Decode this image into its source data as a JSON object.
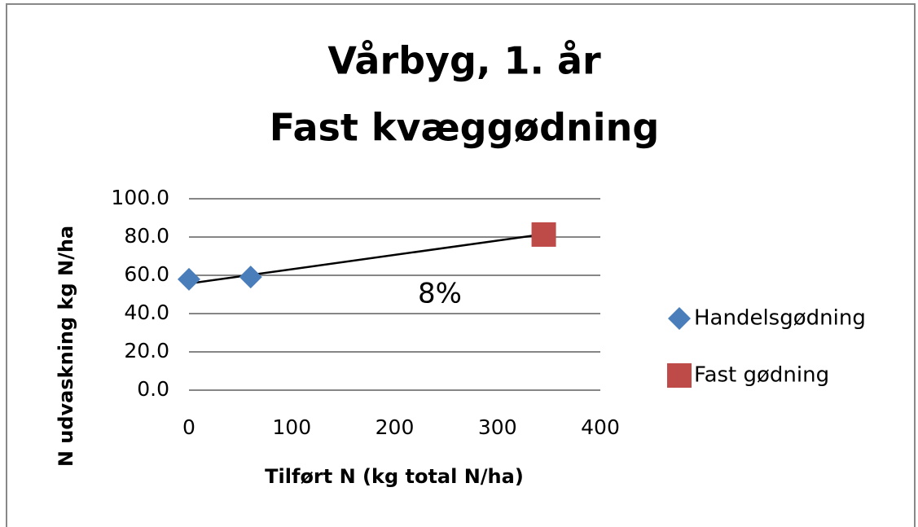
{
  "chart_data": {
    "type": "scatter",
    "title": [
      "Vårbyg, 1. år",
      "Fast kvæggødning"
    ],
    "x_label": "Tilført  N (kg total N/ha)",
    "y_label": "N udvaskning kg N/ha",
    "annotation": "8%",
    "series": [
      {
        "name": "Handelsgødning",
        "color": "#4a7ebb",
        "marker": "diamond",
        "x": [
          0,
          60
        ],
        "values": [
          57.9,
          59.1
        ]
      },
      {
        "name": "Fast gødning",
        "color": "#be4b48",
        "marker": "square",
        "x": [
          345
        ],
        "values": [
          81.3
        ]
      }
    ],
    "trendline": {
      "color": "#000000",
      "x": [
        0,
        345
      ],
      "values": [
        55.7,
        81.5
      ]
    },
    "xlim": [
      0,
      400
    ],
    "xticks": [
      0,
      100,
      200,
      300,
      400
    ],
    "ylim": [
      0,
      100
    ],
    "yticks": [
      {
        "value": 0,
        "label": "0.0"
      },
      {
        "value": 20,
        "label": "20.0"
      },
      {
        "value": 40,
        "label": "40.0"
      },
      {
        "value": 60,
        "label": "60.0"
      },
      {
        "value": 80,
        "label": "80.0"
      },
      {
        "value": 100,
        "label": "100.0"
      }
    ],
    "grid": true,
    "legend": "right"
  }
}
